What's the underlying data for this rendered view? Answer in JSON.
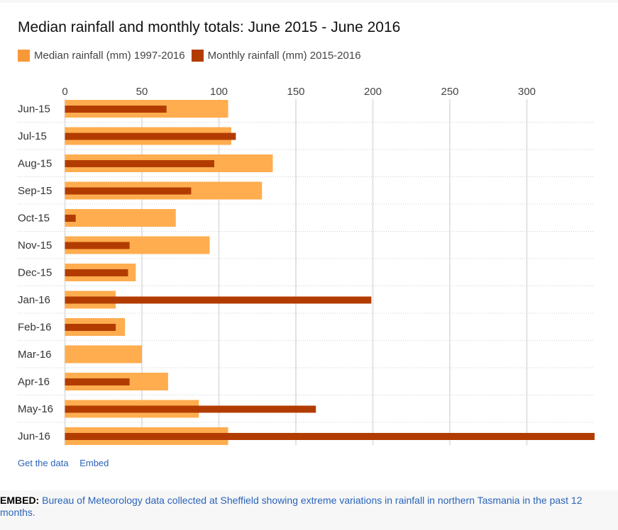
{
  "colors": {
    "median": "#ffad4f",
    "monthly": "#b23c00",
    "legend_median": "#f89939",
    "legend_monthly": "#b23c00",
    "grid": "#e3e3e3",
    "divider": "#cfcfcf",
    "link": "#2a64b8"
  },
  "footer": {
    "get_data_label": "Get the data",
    "embed_label": "Embed"
  },
  "embed": {
    "label": "EMBED:",
    "text": "Bureau of Meteorology data collected at Sheffield showing extreme variations in rainfall in northern Tasmania in the past 12 months."
  },
  "chart_data": {
    "type": "bar",
    "orientation": "horizontal",
    "title": "Median rainfall and monthly totals: June 2015 - June 2016",
    "xlabel": "",
    "ylabel": "",
    "xlim": [
      0,
      344
    ],
    "x_ticks": [
      0,
      50,
      100,
      150,
      200,
      250,
      300
    ],
    "x_tick_labels": [
      "0",
      "50",
      "100",
      "150",
      "200",
      "250",
      "300"
    ],
    "x_axis_position": "top",
    "grid": true,
    "legend_position": "top-left",
    "categories": [
      "Jun-15",
      "Jul-15",
      "Aug-15",
      "Sep-15",
      "Oct-15",
      "Nov-15",
      "Dec-15",
      "Jan-16",
      "Feb-16",
      "Mar-16",
      "Apr-16",
      "May-16",
      "Jun-16"
    ],
    "series": [
      {
        "name": "Median rainfall (mm) 1997-2016",
        "values": [
          106,
          108,
          135,
          128,
          72,
          94,
          46,
          33,
          39,
          50,
          67,
          87,
          106
        ]
      },
      {
        "name": "Monthly rainfall (mm) 2015-2016",
        "values": [
          66,
          111,
          97,
          82,
          7,
          42,
          41,
          199,
          33,
          0,
          42,
          163,
          344
        ]
      }
    ]
  }
}
